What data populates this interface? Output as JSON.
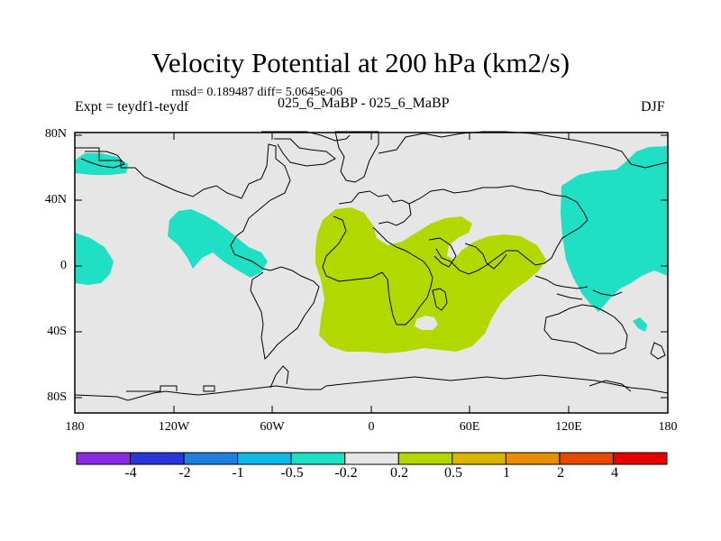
{
  "figure": {
    "title": "Velocity Potential at 200 hPa (km2/s)",
    "stats": "rmsd= 0.189487 diff= 5.0645e-06",
    "expt": "Expt = teydf1-teydf",
    "exp_names": "025_6_MaBP - 025_6_MaBP",
    "season": "DJF"
  },
  "axes": {
    "lat_labels": [
      "80N",
      "40N",
      "0",
      "40S",
      "80S"
    ],
    "lon_labels": [
      "180",
      "120W",
      "60W",
      "0",
      "60E",
      "120E",
      "180"
    ]
  },
  "colorbar": {
    "colors": [
      "#8a2be2",
      "#2a36db",
      "#1e7fe0",
      "#11b7e6",
      "#1fe0c4",
      "#e6e6e6",
      "#b3d800",
      "#ddb400",
      "#e88e00",
      "#e54a00",
      "#e80000"
    ],
    "labels": [
      "-4",
      "-2",
      "-1",
      "-0.5",
      "-0.2",
      "0.2",
      "0.5",
      "1",
      "2",
      "4"
    ]
  },
  "colors": {
    "background": "#e6e6e6",
    "negative_fill": "#1fe0c4",
    "positive_fill": "#b3d800",
    "coast": "#000000"
  }
}
